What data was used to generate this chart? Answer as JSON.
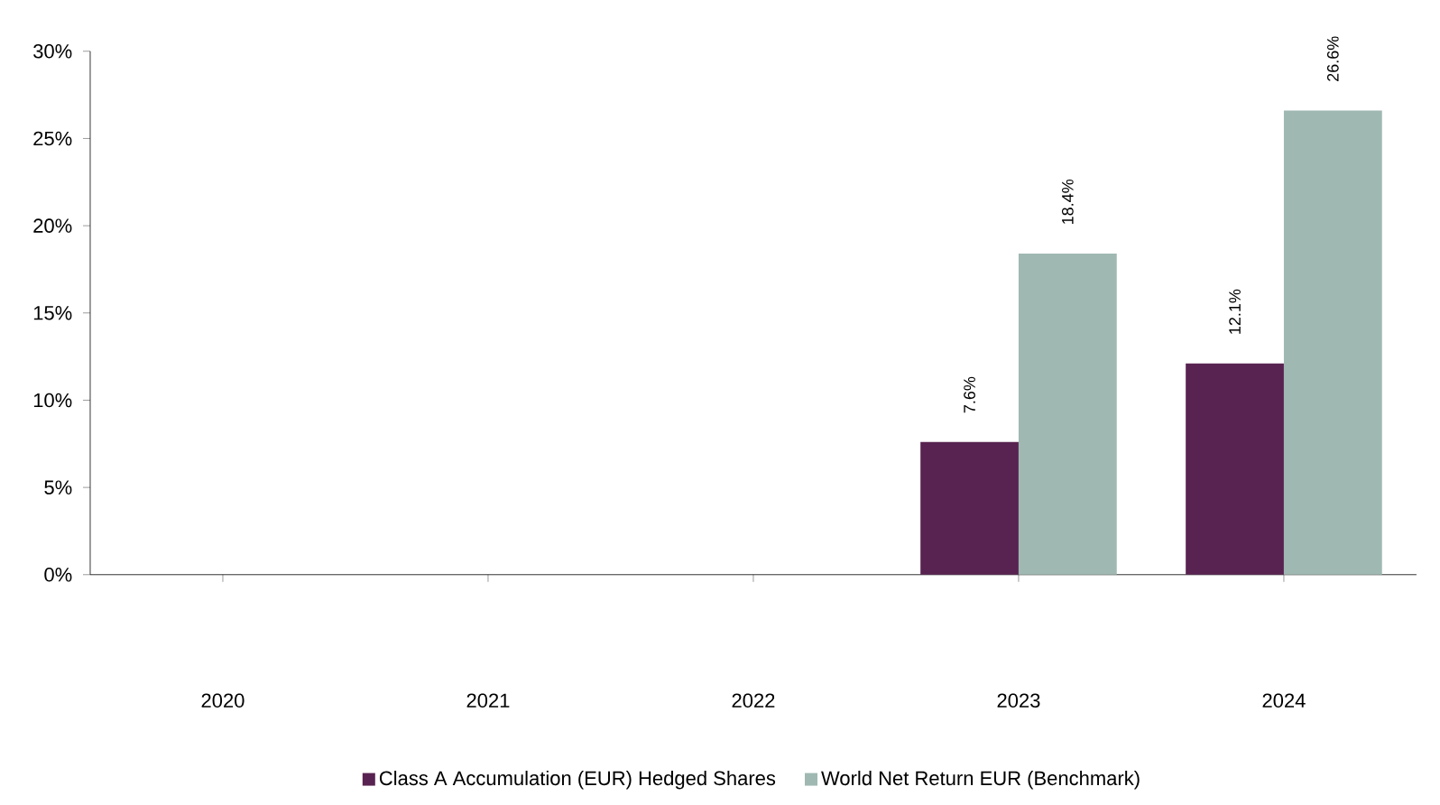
{
  "chart_data": {
    "type": "bar",
    "categories": [
      "2020",
      "2021",
      "2022",
      "2023",
      "2024"
    ],
    "series": [
      {
        "name": "Class A Accumulation (EUR) Hedged Shares",
        "color": "#582350",
        "values": [
          null,
          null,
          null,
          7.6,
          12.1
        ],
        "value_labels": [
          null,
          null,
          null,
          "7.6%",
          "12.1%"
        ]
      },
      {
        "name": "World Net Return EUR (Benchmark)",
        "color": "#9fb8b2",
        "values": [
          null,
          null,
          null,
          18.4,
          26.6
        ],
        "value_labels": [
          null,
          null,
          null,
          "18.4%",
          "26.6%"
        ]
      }
    ],
    "ylim": [
      0,
      30
    ],
    "yticks": [
      {
        "value": 0,
        "label": "0%"
      },
      {
        "value": 5,
        "label": "5%"
      },
      {
        "value": 10,
        "label": "10%"
      },
      {
        "value": 15,
        "label": "15%"
      },
      {
        "value": 20,
        "label": "20%"
      },
      {
        "value": 25,
        "label": "25%"
      },
      {
        "value": 30,
        "label": "30%"
      }
    ],
    "grid": false,
    "legend": "bottom"
  }
}
